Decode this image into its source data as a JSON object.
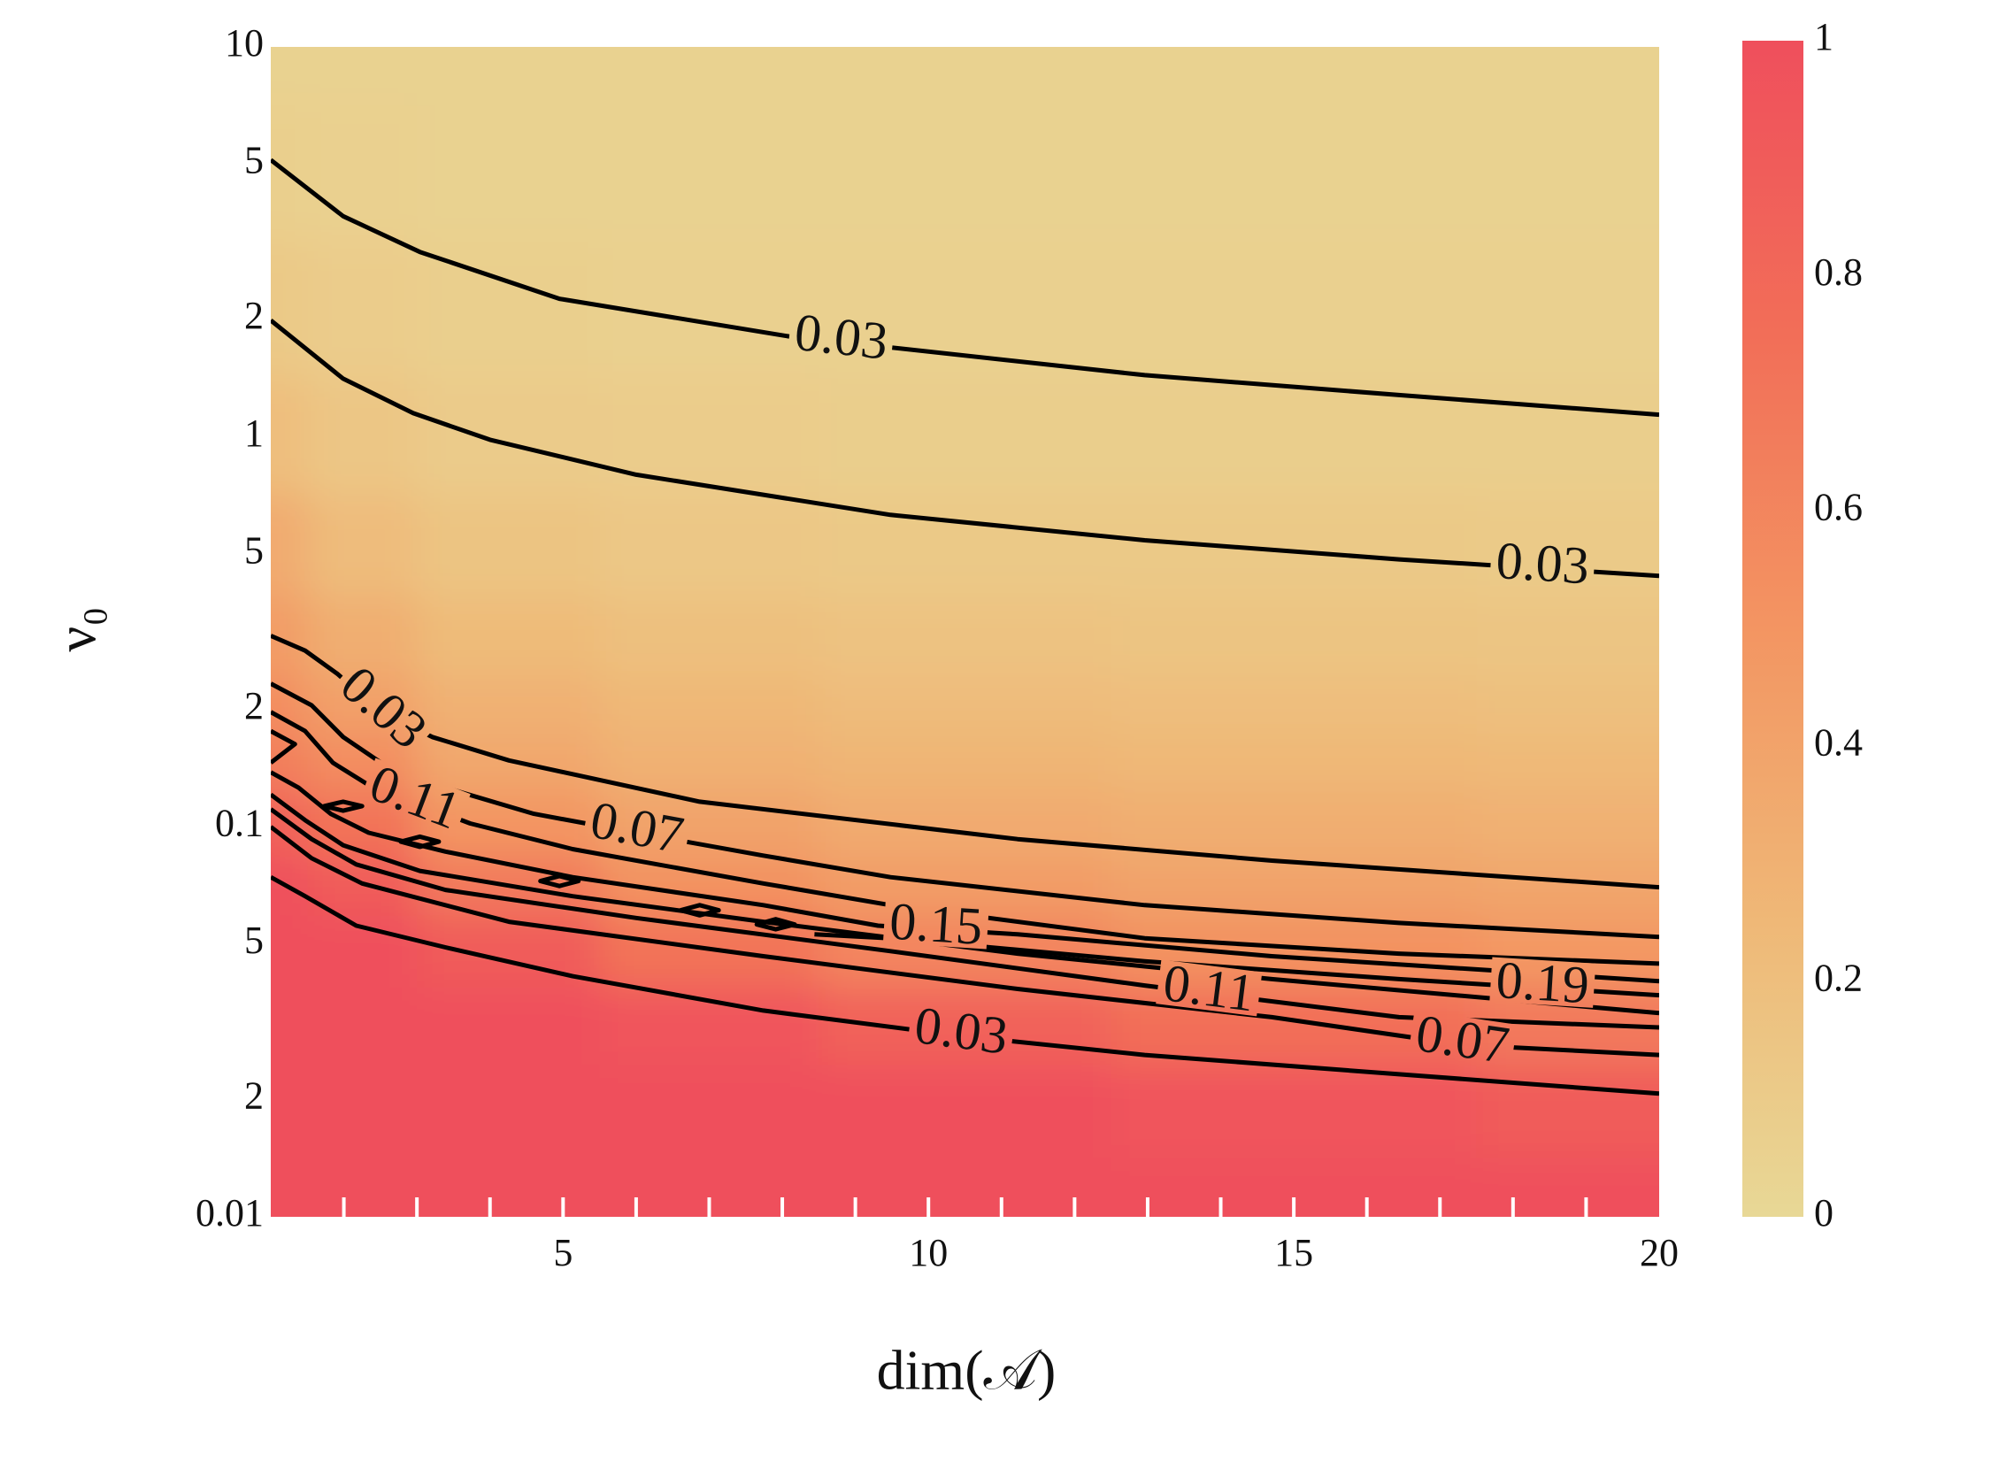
{
  "chart_data": {
    "type": "contour",
    "x_label": "dim(𝒜)",
    "y_label": "ν₀",
    "xlim": [
      1,
      20
    ],
    "xticks": [
      5,
      10,
      15,
      20
    ],
    "xminorticks": [
      2,
      3,
      4,
      6,
      7,
      8,
      9,
      11,
      12,
      13,
      14,
      16,
      17,
      18,
      19
    ],
    "ylim": [
      0.01,
      10
    ],
    "ylog": true,
    "yticks": [
      {
        "value": 0.01,
        "label": "0.01"
      },
      {
        "value": 0.02,
        "label": "2"
      },
      {
        "value": 0.05,
        "label": "5"
      },
      0.1,
      {
        "value": 0.2,
        "label": "2"
      },
      {
        "value": 0.5,
        "label": "5"
      },
      1,
      2,
      5,
      10
    ],
    "zlim": [
      0,
      1
    ],
    "zticks": [
      0,
      0.2,
      0.4,
      0.6,
      0.8,
      1
    ],
    "colorscale": [
      [
        0,
        "#e8d896"
      ],
      [
        0.25,
        "#efb877"
      ],
      [
        0.5,
        "#f39562"
      ],
      [
        0.75,
        "#f26e58"
      ],
      [
        1,
        "#ef4f5c"
      ]
    ],
    "line_color": "#000000",
    "grid_x": [
      1,
      2,
      4,
      7,
      10,
      15,
      20
    ],
    "grid_y": [
      10,
      5,
      2,
      1,
      0.5,
      0.3,
      0.2,
      0.15,
      0.1,
      0.07,
      0.05,
      0.03,
      0.02,
      0.01
    ],
    "z": [
      [
        0.05,
        0.05,
        0.05,
        0.05,
        0.05,
        0.05,
        0.05
      ],
      [
        0.07,
        0.06,
        0.05,
        0.05,
        0.05,
        0.05,
        0.05
      ],
      [
        0.12,
        0.09,
        0.07,
        0.06,
        0.06,
        0.06,
        0.06
      ],
      [
        0.2,
        0.14,
        0.1,
        0.09,
        0.08,
        0.08,
        0.08
      ],
      [
        0.35,
        0.22,
        0.16,
        0.13,
        0.12,
        0.12,
        0.11
      ],
      [
        0.45,
        0.32,
        0.23,
        0.19,
        0.17,
        0.16,
        0.15
      ],
      [
        0.55,
        0.42,
        0.3,
        0.25,
        0.22,
        0.2,
        0.19
      ],
      [
        0.65,
        0.55,
        0.37,
        0.3,
        0.27,
        0.25,
        0.24
      ],
      [
        0.85,
        0.72,
        0.5,
        0.4,
        0.35,
        0.32,
        0.3
      ],
      [
        1,
        0.9,
        0.68,
        0.52,
        0.45,
        0.4,
        0.38
      ],
      [
        1,
        1,
        0.9,
        0.72,
        0.6,
        0.52,
        0.48
      ],
      [
        1,
        1,
        1,
        0.95,
        0.85,
        0.75,
        0.68
      ],
      [
        1,
        1,
        1,
        1,
        1,
        0.95,
        0.9
      ],
      [
        1,
        1,
        1,
        1,
        1,
        1,
        1
      ]
    ],
    "contours": [
      {
        "level": 0.03,
        "label_x": 8.8,
        "x": [
          1,
          1.99,
          3.04,
          4.95,
          8.09,
          12.96,
          16.44,
          20
        ],
        "y": [
          5.13,
          3.68,
          2.98,
          2.26,
          1.81,
          1.44,
          1.28,
          1.14
        ]
      },
      {
        "level": 0.03,
        "label_x": 18.4,
        "x": [
          1,
          1.99,
          2.95,
          4.0,
          6.0,
          9.48,
          12.96,
          16.44,
          20
        ],
        "y": [
          1.99,
          1.41,
          1.15,
          0.983,
          0.8,
          0.631,
          0.543,
          0.485,
          0.44
        ]
      },
      {
        "level": 0.03,
        "label_x": 2.5,
        "x": [
          1,
          1.47,
          1.91,
          2.51,
          3.21,
          4.26,
          6.87,
          11.22,
          14.7,
          20
        ],
        "y": [
          0.309,
          0.283,
          0.247,
          0.197,
          0.17,
          0.148,
          0.116,
          0.093,
          0.0819,
          0.07
        ]
      },
      {
        "level": 0.07,
        "label_x": 6.0,
        "x": [
          1,
          1.56,
          1.99,
          2.51,
          3.39,
          4.6,
          6.0,
          7.74,
          9.48,
          12.96,
          16.44,
          20
        ],
        "y": [
          0.233,
          0.205,
          0.17,
          0.146,
          0.126,
          0.108,
          0.0966,
          0.0844,
          0.0743,
          0.063,
          0.0567,
          0.0522
        ]
      },
      {
        "level": 0.11,
        "label_x": 2.95,
        "x": [
          1,
          1.47,
          1.85,
          2.34,
          3.73,
          5.13,
          7.74,
          9.48,
          12.96,
          16.44,
          20
        ],
        "y": [
          0.197,
          0.176,
          0.146,
          0.128,
          0.102,
          0.0877,
          0.0716,
          0.063,
          0.0518,
          0.0473,
          0.0446
        ]
      },
      {
        "level": 0.15,
        "label_x": 10.1,
        "x": [
          1,
          1.38,
          1.82,
          2.34,
          3.39,
          5.13,
          7.74,
          9.31,
          11.22,
          14.7,
          20
        ],
        "y": [
          0.138,
          0.126,
          0.108,
          0.0966,
          0.0864,
          0.0743,
          0.063,
          0.0558,
          0.053,
          0.0466,
          0.0402
        ]
      },
      {
        "level": 0.19,
        "label_x": 18.4,
        "x": [
          8.44,
          9.48,
          12.96,
          16.44,
          20
        ],
        "y": [
          0.053,
          0.0518,
          0.0452,
          0.0407,
          0.037
        ]
      },
      {
        "x": [
          1,
          1.47,
          1.99,
          3.04,
          5.13,
          7.74,
          11.22,
          14.7,
          20
        ],
        "y": [
          0.121,
          0.104,
          0.0897,
          0.0771,
          0.0664,
          0.0571,
          0.0473,
          0.0407,
          0.0333
        ]
      },
      {
        "level": 0.11,
        "label_x": 13.83,
        "x": [
          1,
          1.56,
          2.17,
          3.39,
          6.0,
          9.48,
          12.96,
          16.44,
          20
        ],
        "y": [
          0.111,
          0.093,
          0.0801,
          0.0689,
          0.0584,
          0.048,
          0.0392,
          0.0325,
          0.0306
        ]
      },
      {
        "level": 0.07,
        "label_x": 17.3,
        "x": [
          1,
          1.56,
          2.25,
          4.26,
          7.74,
          11.22,
          14.7,
          17.32,
          20
        ],
        "y": [
          0.1,
          0.0831,
          0.0716,
          0.0571,
          0.0466,
          0.0384,
          0.0325,
          0.0276,
          0.026
        ]
      },
      {
        "level": 0.03,
        "label_x": 10.44,
        "x": [
          1,
          1.47,
          2.17,
          3.39,
          5.13,
          7.74,
          10.44,
          12.96,
          16.44,
          20
        ],
        "y": [
          0.0743,
          0.0664,
          0.0558,
          0.0491,
          0.0414,
          0.0338,
          0.0291,
          0.026,
          0.0232,
          0.0207
        ]
      },
      {
        "closed": true,
        "x": [
          1.73,
          1.99,
          2.25,
          1.99
        ],
        "y": [
          0.113,
          0.116,
          0.113,
          0.11
        ]
      },
      {
        "closed": true,
        "x": [
          2.78,
          3.04,
          3.3,
          3.04
        ],
        "y": [
          0.0916,
          0.0944,
          0.0916,
          0.0889
        ]
      },
      {
        "closed": true,
        "x": [
          4.69,
          4.95,
          5.21,
          4.95
        ],
        "y": [
          0.0726,
          0.0748,
          0.0726,
          0.0705
        ]
      },
      {
        "closed": true,
        "x": [
          6.61,
          6.87,
          7.13,
          6.87
        ],
        "y": [
          0.0611,
          0.063,
          0.0611,
          0.0593
        ]
      },
      {
        "closed": true,
        "x": [
          7.65,
          7.91,
          8.17,
          7.91
        ],
        "y": [
          0.0562,
          0.058,
          0.0562,
          0.0546
        ]
      },
      {
        "x": [
          1,
          1.33,
          1
        ],
        "y": [
          0.176,
          0.163,
          0.146
        ]
      }
    ]
  }
}
